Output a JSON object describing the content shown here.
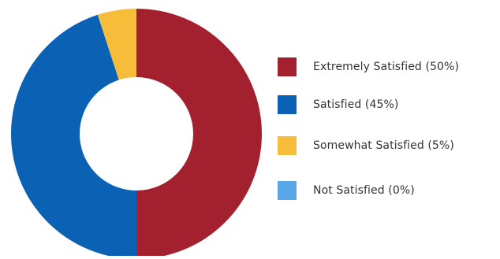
{
  "chart_data": {
    "type": "pie",
    "variant": "donut",
    "categories": [
      "Extremely Satisfied (50%)",
      "Satisfied (45%)",
      "Somewhat Satisfied (5%)",
      "Not Satisfied (0%)"
    ],
    "values": [
      50,
      45,
      5,
      0
    ],
    "unit": "%",
    "colors": [
      "#a3202f",
      "#0b62b5",
      "#f7bd3a",
      "#5aa7e8"
    ],
    "legend": {
      "position": "right",
      "items": [
        {
          "label": "Extremely Satisfied (50%)",
          "color": "#a3202f"
        },
        {
          "label": "Satisfied (45%)",
          "color": "#0b62b5"
        },
        {
          "label": "Somewhat Satisfied (5%)",
          "color": "#f7bd3a"
        },
        {
          "label": "Not Satisfied (0%)",
          "color": "#5aa7e8"
        }
      ]
    }
  }
}
